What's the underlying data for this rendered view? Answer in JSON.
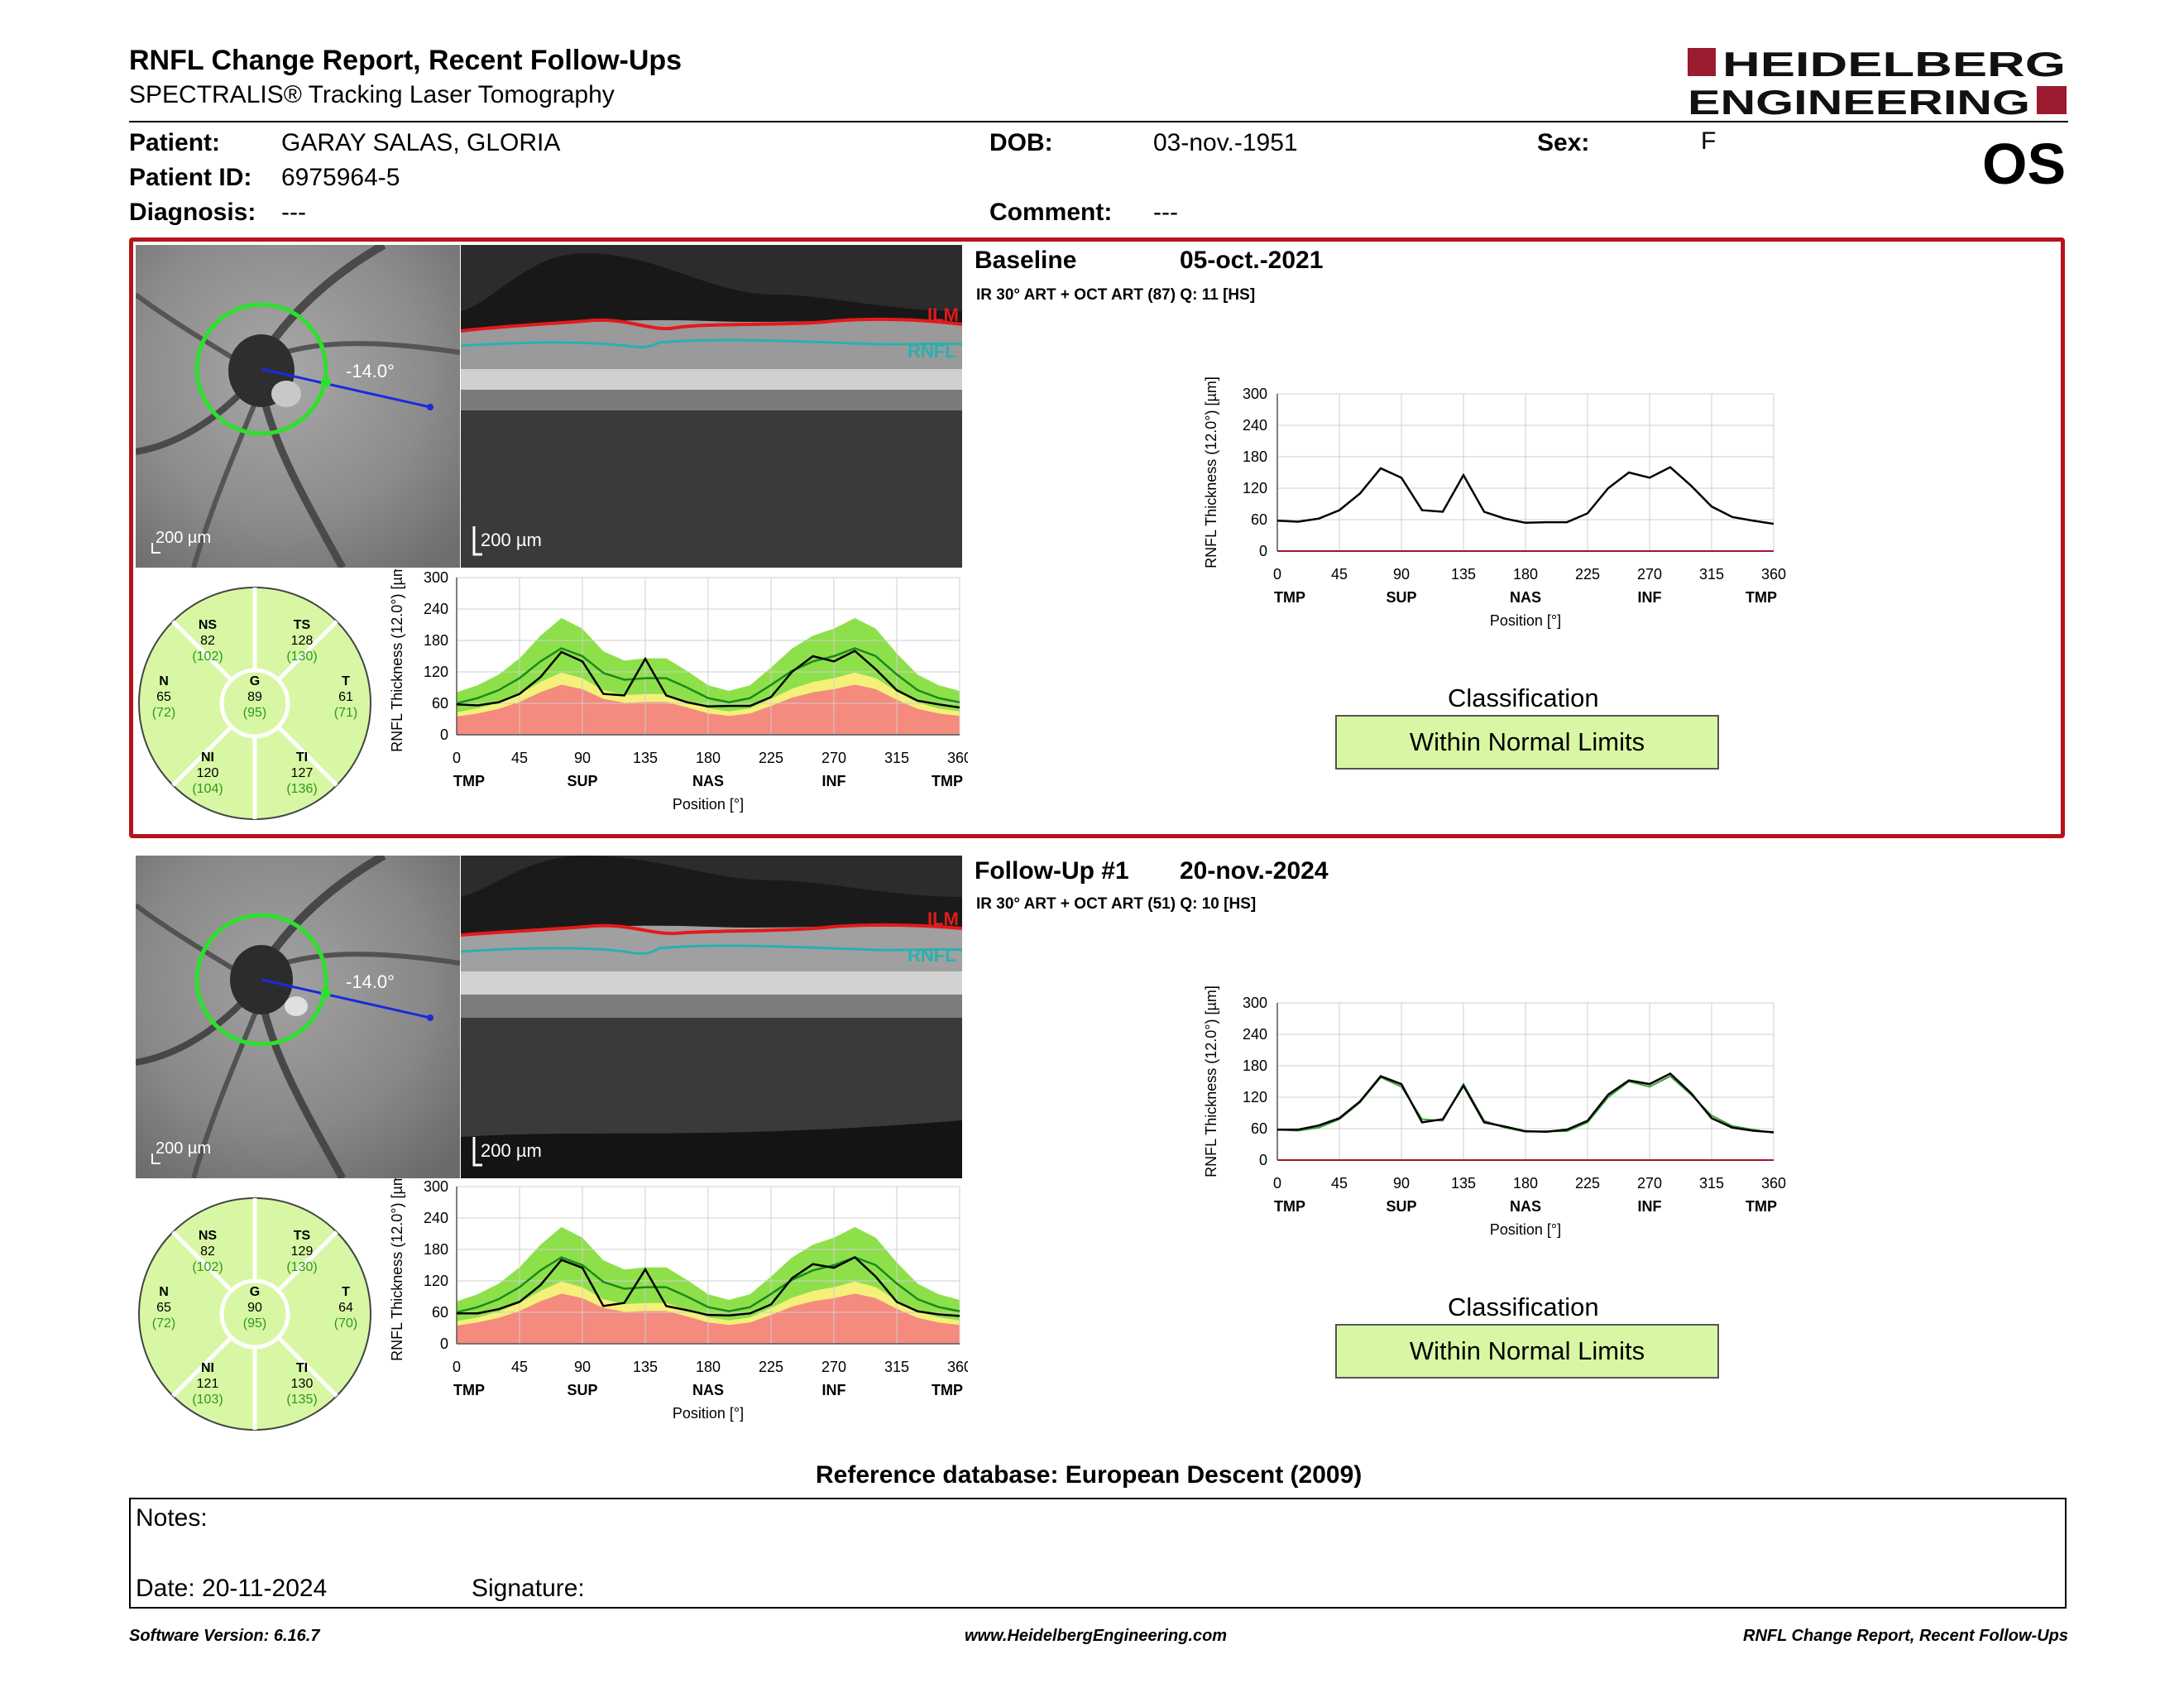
{
  "header": {
    "title": "RNFL Change Report, Recent Follow-Ups",
    "subtitle": "SPECTRALIS® Tracking Laser Tomography",
    "logo_line1": "HEIDELBERG",
    "logo_line2": "ENGINEERING",
    "brand_color": "#9b1b30"
  },
  "patient": {
    "patient_label": "Patient:",
    "patient_name": "GARAY SALAS, GLORIA",
    "id_label": "Patient ID:",
    "id": "6975964-5",
    "diagnosis_label": "Diagnosis:",
    "diagnosis": "---",
    "dob_label": "DOB:",
    "dob": "03-nov.-1951",
    "comment_label": "Comment:",
    "comment": "---",
    "sex_label": "Sex:",
    "sex": "F",
    "eye": "OS"
  },
  "colors": {
    "baseline_border": "#b4141c",
    "ilm": "#e31a1a",
    "rnfl": "#2ab0b0",
    "normal_band": "#8ee04a",
    "borderline_band": "#f4f07a",
    "outside_band": "#f58a7e",
    "classification_fill": "#d8f7a4"
  },
  "exams": [
    {
      "heading": "Baseline",
      "date": "05-oct.-2021",
      "scan_info": "IR 30° ART + OCT ART (87) Q: 11 [HS]",
      "angle": "-14.0°",
      "fundus_scale": "200 µm",
      "bscan_scale": "200 µm",
      "ilm_label": "ILM",
      "rnfl_label": "RNFL",
      "sectors": {
        "NS": {
          "name": "NS",
          "value": "82",
          "normal": "(102)"
        },
        "TS": {
          "name": "TS",
          "value": "128",
          "normal": "(130)"
        },
        "N": {
          "name": "N",
          "value": "65",
          "normal": "(72)"
        },
        "G": {
          "name": "G",
          "value": "89",
          "normal": "(95)"
        },
        "T": {
          "name": "T",
          "value": "61",
          "normal": "(71)"
        },
        "NI": {
          "name": "NI",
          "value": "120",
          "normal": "(104)"
        },
        "TI": {
          "name": "TI",
          "value": "127",
          "normal": "(136)"
        }
      },
      "classification_label": "Classification",
      "classification": "Within Normal Limits"
    },
    {
      "heading": "Follow-Up #1",
      "date": "20-nov.-2024",
      "scan_info": "IR 30° ART + OCT ART (51) Q: 10 [HS]",
      "angle": "-14.0°",
      "fundus_scale": "200 µm",
      "bscan_scale": "200 µm",
      "ilm_label": "ILM",
      "rnfl_label": "RNFL",
      "sectors": {
        "NS": {
          "name": "NS",
          "value": "82",
          "normal": "(102)"
        },
        "TS": {
          "name": "TS",
          "value": "129",
          "normal": "(130)"
        },
        "N": {
          "name": "N",
          "value": "65",
          "normal": "(72)"
        },
        "G": {
          "name": "G",
          "value": "90",
          "normal": "(95)"
        },
        "T": {
          "name": "T",
          "value": "64",
          "normal": "(70)"
        },
        "NI": {
          "name": "NI",
          "value": "121",
          "normal": "(103)"
        },
        "TI": {
          "name": "TI",
          "value": "130",
          "normal": "(135)"
        }
      },
      "classification_label": "Classification",
      "classification": "Within Normal Limits"
    }
  ],
  "chart_data": [
    {
      "type": "line",
      "ylabel": "RNFL Thickness (12.0°) [µm]",
      "xlabel": "Position [°]",
      "ylim": [
        0,
        300
      ],
      "xlim": [
        0,
        360
      ],
      "yticks": [
        "300",
        "240",
        "180",
        "120",
        "60",
        "0"
      ],
      "xticks": [
        "0",
        "45",
        "90",
        "135",
        "180",
        "225",
        "270",
        "315",
        "360"
      ],
      "sector_labels": [
        "TMP",
        "SUP",
        "NAS",
        "INF",
        "TMP"
      ],
      "x": [
        0,
        15,
        30,
        45,
        60,
        75,
        90,
        105,
        120,
        135,
        150,
        165,
        180,
        195,
        210,
        225,
        240,
        255,
        270,
        285,
        300,
        315,
        330,
        345,
        360
      ],
      "series": [
        {
          "values": [
            58,
            56,
            62,
            78,
            110,
            158,
            140,
            78,
            75,
            145,
            75,
            62,
            54,
            55,
            55,
            72,
            120,
            150,
            140,
            160,
            125,
            85,
            65,
            58,
            52
          ]
        },
        {
          "values": [
            60,
            70,
            85,
            108,
            140,
            165,
            150,
            118,
            105,
            108,
            108,
            90,
            70,
            62,
            70,
            95,
            122,
            140,
            150,
            165,
            150,
            115,
            85,
            70,
            62
          ]
        }
      ]
    },
    {
      "type": "line",
      "ylabel": "RNFL Thickness (12.0°) [µm]",
      "xlabel": "Position [°]",
      "ylim": [
        0,
        300
      ],
      "xlim": [
        0,
        360
      ],
      "yticks": [
        "300",
        "240",
        "180",
        "120",
        "60",
        "0"
      ],
      "xticks": [
        "0",
        "45",
        "90",
        "135",
        "180",
        "225",
        "270",
        "315",
        "360"
      ],
      "sector_labels": [
        "TMP",
        "SUP",
        "NAS",
        "INF",
        "TMP"
      ],
      "x": [
        0,
        15,
        30,
        45,
        60,
        75,
        90,
        105,
        120,
        135,
        150,
        165,
        180,
        195,
        210,
        225,
        240,
        255,
        270,
        285,
        300,
        315,
        330,
        345,
        360
      ],
      "series": [
        {
          "values": [
            58,
            58,
            66,
            80,
            112,
            160,
            145,
            72,
            78,
            142,
            72,
            64,
            55,
            54,
            58,
            75,
            125,
            152,
            145,
            165,
            128,
            80,
            62,
            56,
            53
          ]
        },
        {
          "values": [
            60,
            70,
            85,
            108,
            140,
            165,
            150,
            118,
            105,
            108,
            108,
            90,
            70,
            62,
            70,
            95,
            122,
            140,
            150,
            165,
            150,
            115,
            85,
            70,
            62
          ]
        }
      ]
    }
  ],
  "reference_db": "Reference database: European Descent (2009)",
  "notes": {
    "notes_label": "Notes:",
    "date_label": "Date: 20-11-2024",
    "signature_label": "Signature:"
  },
  "footer": {
    "software": "Software Version: 6.16.7",
    "website": "www.HeidelbergEngineering.com",
    "report_name": "RNFL Change Report, Recent Follow-Ups"
  }
}
